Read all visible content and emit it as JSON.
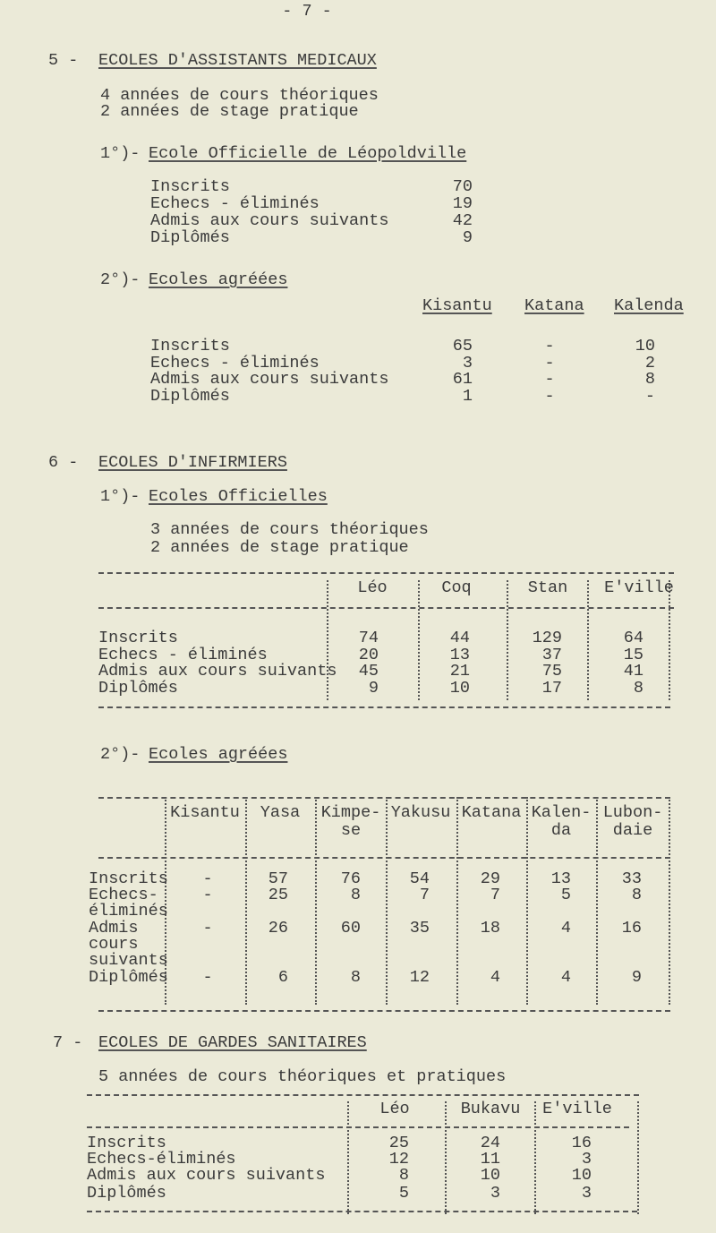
{
  "page_number": "- 7 -",
  "s5": {
    "num": "5 -",
    "title": "ECOLES D'ASSISTANTS MEDICAUX",
    "lines": [
      "4 années de cours théoriques",
      "2 années de stage pratique"
    ],
    "sub1": {
      "num": "1°)-",
      "title": "Ecole Officielle de Léopoldville",
      "rows": [
        {
          "label": "Inscrits",
          "value": "70"
        },
        {
          "label": "Echecs - éliminés",
          "value": "19"
        },
        {
          "label": "Admis aux cours suivants",
          "value": "42"
        },
        {
          "label": "Diplômés",
          "value": "9"
        }
      ]
    },
    "sub2": {
      "num": "2°)-",
      "title": "Ecoles agréées",
      "headers": [
        "Kisantu",
        "Katana",
        "Kalenda"
      ],
      "rows": [
        {
          "label": "Inscrits",
          "values": [
            "65",
            "-",
            "10"
          ]
        },
        {
          "label": "Echecs - éliminés",
          "values": [
            "3",
            "-",
            "2"
          ]
        },
        {
          "label": "Admis aux cours suivants",
          "values": [
            "61",
            "-",
            "8"
          ]
        },
        {
          "label": "Diplômés",
          "values": [
            "1",
            "-",
            "-"
          ]
        }
      ]
    }
  },
  "s6": {
    "num": "6 -",
    "title": "ECOLES D'INFIRMIERS",
    "sub1": {
      "num": "1°)-",
      "title": "Ecoles Officielles",
      "lines": [
        "3 années de cours théoriques",
        "2 années de stage pratique"
      ],
      "headers": [
        "Léo",
        "Coq",
        "Stan",
        "E'ville"
      ],
      "rows": [
        {
          "label": "Inscrits",
          "values": [
            "74",
            "44",
            "129",
            "64"
          ]
        },
        {
          "label": "Echecs - éliminés",
          "values": [
            "20",
            "13",
            "37",
            "15"
          ]
        },
        {
          "label": "Admis aux cours suivants",
          "values": [
            "45",
            "21",
            "75",
            "41"
          ]
        },
        {
          "label": "Diplômés",
          "values": [
            "9",
            "10",
            "17",
            "8"
          ]
        }
      ]
    },
    "sub2": {
      "num": "2°)-",
      "title": "Ecoles agréées",
      "headers": [
        [
          "Kisantu",
          ""
        ],
        [
          "Yasa",
          ""
        ],
        [
          "Kimpe-",
          "se"
        ],
        [
          "Yakusu",
          ""
        ],
        [
          "Katana",
          ""
        ],
        [
          "Kalen-",
          "da"
        ],
        [
          "Lubon-",
          "daie"
        ]
      ],
      "rows": [
        {
          "label": [
            "Inscrits"
          ],
          "values": [
            "-",
            "57",
            "76",
            "54",
            "29",
            "13",
            "33"
          ]
        },
        {
          "label": [
            "Echecs-",
            "éliminés"
          ],
          "values": [
            "-",
            "25",
            "8",
            "7",
            "7",
            "5",
            "8"
          ]
        },
        {
          "label": [
            "Admis",
            "cours",
            "suivants"
          ],
          "values": [
            "-",
            "26",
            "60",
            "35",
            "18",
            "4",
            "16"
          ]
        },
        {
          "label": [
            "Diplômés"
          ],
          "values": [
            "-",
            "6",
            "8",
            "12",
            "4",
            "4",
            "9"
          ]
        }
      ]
    }
  },
  "s7": {
    "num": "7 -",
    "title": "ECOLES DE GARDES SANITAIRES",
    "line": "5 années de cours théoriques et pratiques",
    "headers": [
      "Léo",
      "Bukavu",
      "E'ville"
    ],
    "rows": [
      {
        "label": "Inscrits",
        "values": [
          "25",
          "24",
          "16"
        ]
      },
      {
        "label": "Echecs-éliminés",
        "values": [
          "12",
          "11",
          "3"
        ]
      },
      {
        "label": "Admis aux cours suivants",
        "values": [
          "8",
          "10",
          "10"
        ]
      },
      {
        "label": "Diplômés",
        "values": [
          "5",
          "3",
          "3"
        ]
      }
    ]
  }
}
